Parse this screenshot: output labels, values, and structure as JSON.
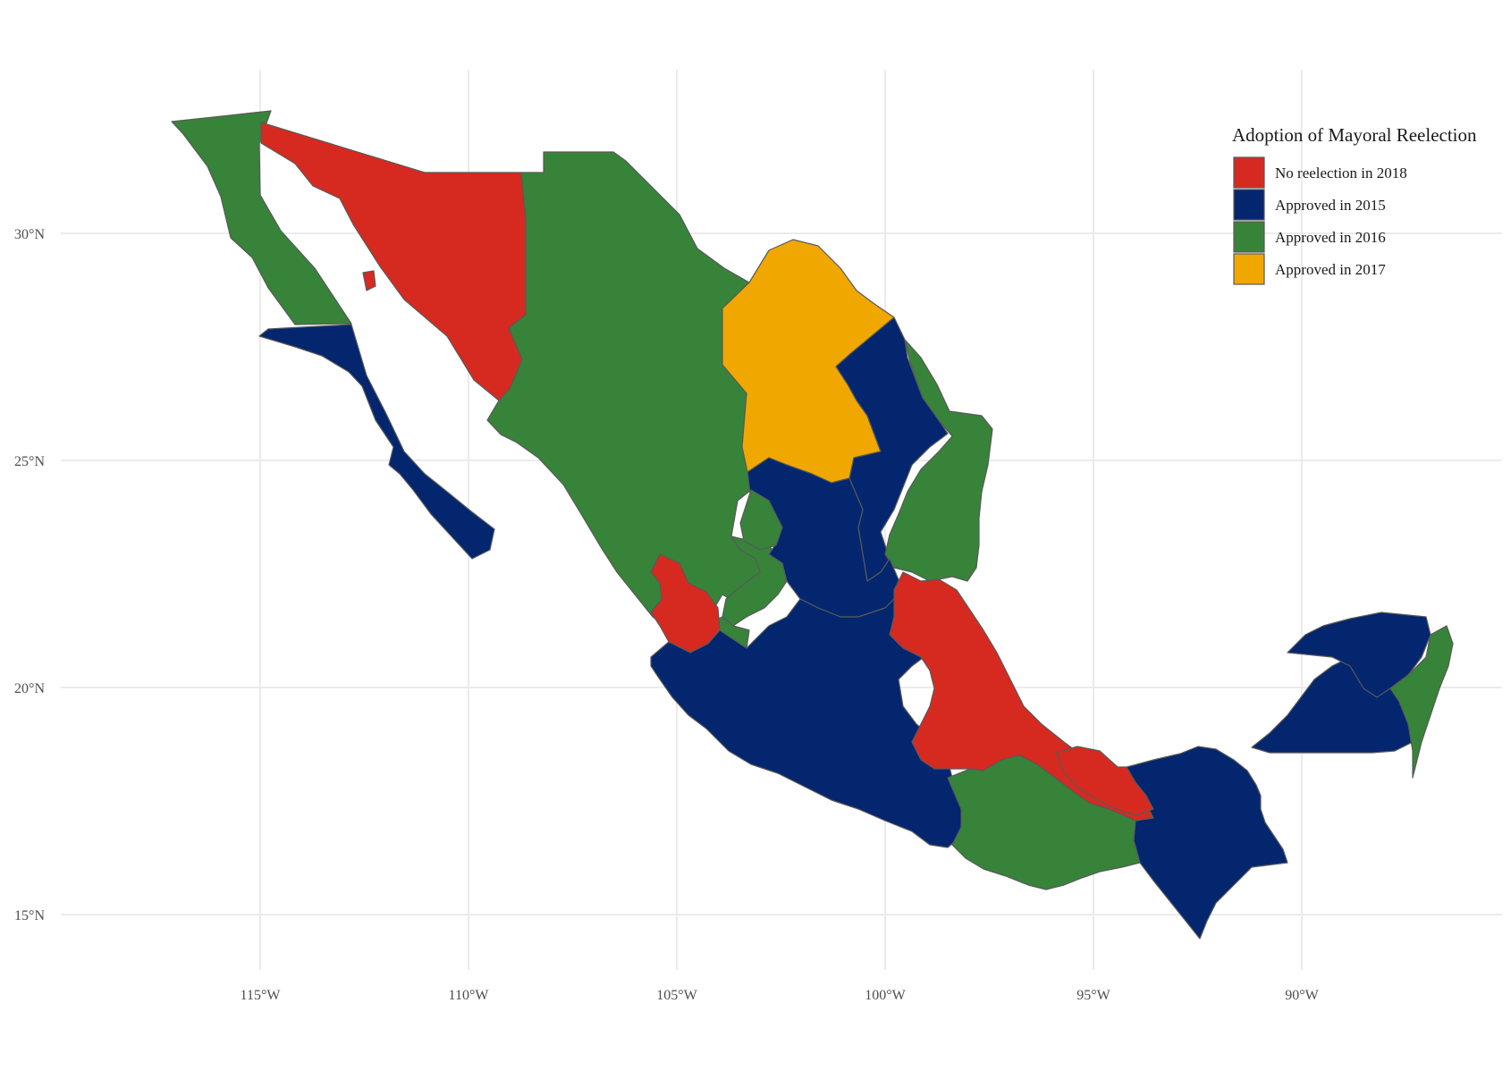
{
  "colors": {
    "no_reelection_2018": "#d62a20",
    "approved_2015": "#03266f",
    "approved_2016": "#378339",
    "approved_2017": "#f0a800"
  },
  "chart_data": {
    "type": "choropleth",
    "legend": {
      "title": "Adoption of Mayoral Reelection",
      "position": "top-right",
      "entries": [
        {
          "label": "No reelection in 2018",
          "color_key": "no_reelection_2018"
        },
        {
          "label": "Approved in 2015",
          "color_key": "approved_2015"
        },
        {
          "label": "Approved in 2016",
          "color_key": "approved_2016"
        },
        {
          "label": "Approved in 2017",
          "color_key": "approved_2017"
        }
      ]
    },
    "x_ticks": [
      "115°W",
      "110°W",
      "105°W",
      "100°W",
      "95°W",
      "90°W"
    ],
    "y_ticks": [
      "15°N",
      "20°N",
      "25°N",
      "30°N"
    ],
    "x_range": [
      -118.5,
      -86.5
    ],
    "y_range": [
      14.0,
      32.8
    ],
    "grid": true,
    "regions": [
      {
        "category": "approved_2016"
      },
      {
        "category": "no_reelection_2018"
      },
      {
        "category": "approved_2015"
      },
      {
        "category": "no_reelection_2018"
      },
      {
        "category": "approved_2016"
      },
      {
        "category": "approved_2017"
      },
      {
        "category": "approved_2015"
      },
      {
        "category": "approved_2016"
      },
      {
        "category": "approved_2016"
      },
      {
        "category": "approved_2015"
      },
      {
        "category": "approved_2016"
      },
      {
        "category": "approved_2016"
      },
      {
        "category": "no_reelection_2018"
      },
      {
        "category": "approved_2015"
      },
      {
        "category": "no_reelection_2018"
      },
      {
        "category": "approved_2015"
      },
      {
        "category": "approved_2016"
      },
      {
        "category": "no_reelection_2018"
      },
      {
        "category": "approved_2015"
      },
      {
        "category": "approved_2015"
      },
      {
        "category": "approved_2016"
      }
    ]
  }
}
